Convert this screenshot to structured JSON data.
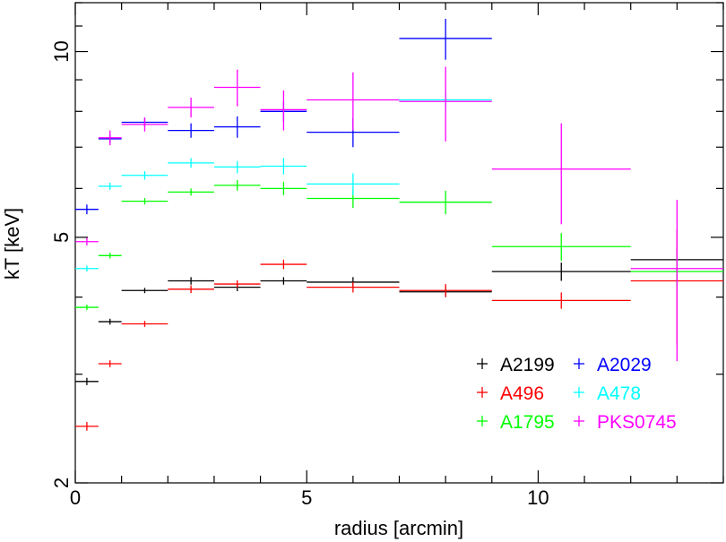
{
  "chart_data": {
    "type": "scatter",
    "xlabel": "radius [arcmin]",
    "ylabel": "kT [keV]",
    "xlim": [
      0,
      14
    ],
    "ylim": [
      2,
      12
    ],
    "y_scale": "log",
    "grid": false,
    "legend_position": "bottom-right",
    "x_ticks": [
      {
        "value": 0,
        "label": "0"
      },
      {
        "value": 5,
        "label": "5"
      },
      {
        "value": 10,
        "label": "10"
      }
    ],
    "y_ticks": [
      {
        "value": 2,
        "label": "2"
      },
      {
        "value": 5,
        "label": "5"
      },
      {
        "value": 10,
        "label": "10"
      }
    ],
    "series": [
      {
        "name": "A2199",
        "color": "#000000",
        "points": [
          {
            "x": 0.25,
            "xerr": 0.25,
            "y": 2.92,
            "yerr": 0.04
          },
          {
            "x": 0.75,
            "xerr": 0.25,
            "y": 3.65,
            "yerr": 0.04
          },
          {
            "x": 1.5,
            "xerr": 0.5,
            "y": 4.1,
            "yerr": 0.04
          },
          {
            "x": 2.5,
            "xerr": 0.5,
            "y": 4.25,
            "yerr": 0.06
          },
          {
            "x": 3.5,
            "xerr": 0.5,
            "y": 4.15,
            "yerr": 0.06
          },
          {
            "x": 4.5,
            "xerr": 0.5,
            "y": 4.25,
            "yerr": 0.06
          },
          {
            "x": 6.0,
            "xerr": 1.0,
            "y": 4.23,
            "yerr": 0.08
          },
          {
            "x": 8.0,
            "xerr": 1.0,
            "y": 4.08,
            "yerr": 0.08
          },
          {
            "x": 10.5,
            "xerr": 1.5,
            "y": 4.4,
            "yerr": 0.15
          },
          {
            "x": 13.0,
            "xerr": 1.0,
            "y": 4.6,
            "yerr": 0.2
          }
        ]
      },
      {
        "name": "A496",
        "color": "#ff0000",
        "points": [
          {
            "x": 0.25,
            "xerr": 0.25,
            "y": 2.47,
            "yerr": 0.04
          },
          {
            "x": 0.75,
            "xerr": 0.25,
            "y": 3.12,
            "yerr": 0.04
          },
          {
            "x": 1.5,
            "xerr": 0.5,
            "y": 3.62,
            "yerr": 0.04
          },
          {
            "x": 2.5,
            "xerr": 0.5,
            "y": 4.12,
            "yerr": 0.06
          },
          {
            "x": 3.5,
            "xerr": 0.5,
            "y": 4.2,
            "yerr": 0.06
          },
          {
            "x": 4.5,
            "xerr": 0.5,
            "y": 4.52,
            "yerr": 0.08
          },
          {
            "x": 6.0,
            "xerr": 1.0,
            "y": 4.15,
            "yerr": 0.08
          },
          {
            "x": 8.0,
            "xerr": 1.0,
            "y": 4.1,
            "yerr": 0.1
          },
          {
            "x": 10.5,
            "xerr": 1.5,
            "y": 3.95,
            "yerr": 0.12
          },
          {
            "x": 13.0,
            "xerr": 1.0,
            "y": 4.25,
            "yerr": 0.9
          }
        ]
      },
      {
        "name": "A1795",
        "color": "#00ff00",
        "points": [
          {
            "x": 0.25,
            "xerr": 0.25,
            "y": 3.85,
            "yerr": 0.04
          },
          {
            "x": 0.75,
            "xerr": 0.25,
            "y": 4.67,
            "yerr": 0.05
          },
          {
            "x": 1.5,
            "xerr": 0.5,
            "y": 5.72,
            "yerr": 0.07
          },
          {
            "x": 2.5,
            "xerr": 0.5,
            "y": 5.92,
            "yerr": 0.08
          },
          {
            "x": 3.5,
            "xerr": 0.5,
            "y": 6.07,
            "yerr": 0.12
          },
          {
            "x": 4.5,
            "xerr": 0.5,
            "y": 6.0,
            "yerr": 0.15
          },
          {
            "x": 6.0,
            "xerr": 1.0,
            "y": 5.78,
            "yerr": 0.2
          },
          {
            "x": 8.0,
            "xerr": 1.0,
            "y": 5.7,
            "yerr": 0.25
          },
          {
            "x": 10.5,
            "xerr": 1.5,
            "y": 4.83,
            "yerr": 0.25
          },
          {
            "x": 13.0,
            "xerr": 1.0,
            "y": 4.4,
            "yerr": 0.25
          }
        ]
      },
      {
        "name": "A2029",
        "color": "#0000ff",
        "points": [
          {
            "x": 0.25,
            "xerr": 0.25,
            "y": 5.55,
            "yerr": 0.1
          },
          {
            "x": 0.75,
            "xerr": 0.25,
            "y": 7.22,
            "yerr": 0.12
          },
          {
            "x": 1.5,
            "xerr": 0.5,
            "y": 7.68,
            "yerr": 0.12
          },
          {
            "x": 2.5,
            "xerr": 0.5,
            "y": 7.45,
            "yerr": 0.2
          },
          {
            "x": 3.5,
            "xerr": 0.5,
            "y": 7.55,
            "yerr": 0.3
          },
          {
            "x": 4.5,
            "xerr": 0.5,
            "y": 8.0,
            "yerr": 0.3
          },
          {
            "x": 6.0,
            "xerr": 1.0,
            "y": 7.4,
            "yerr": 0.4
          },
          {
            "x": 8.0,
            "xerr": 1.0,
            "y": 10.5,
            "yerr": 0.8
          }
        ]
      },
      {
        "name": "A478",
        "color": "#00ffff",
        "points": [
          {
            "x": 0.25,
            "xerr": 0.25,
            "y": 4.45,
            "yerr": 0.05
          },
          {
            "x": 0.75,
            "xerr": 0.25,
            "y": 6.05,
            "yerr": 0.08
          },
          {
            "x": 1.5,
            "xerr": 0.5,
            "y": 6.3,
            "yerr": 0.1
          },
          {
            "x": 2.5,
            "xerr": 0.5,
            "y": 6.6,
            "yerr": 0.12
          },
          {
            "x": 3.5,
            "xerr": 0.5,
            "y": 6.5,
            "yerr": 0.15
          },
          {
            "x": 4.5,
            "xerr": 0.5,
            "y": 6.52,
            "yerr": 0.2
          },
          {
            "x": 6.0,
            "xerr": 1.0,
            "y": 6.1,
            "yerr": 0.25
          },
          {
            "x": 8.0,
            "xerr": 1.0,
            "y": 8.35,
            "yerr": 0.3
          }
        ]
      },
      {
        "name": "PKS0745",
        "color": "#ff00ff",
        "points": [
          {
            "x": 0.25,
            "xerr": 0.25,
            "y": 4.92,
            "yerr": 0.07
          },
          {
            "x": 0.75,
            "xerr": 0.25,
            "y": 7.25,
            "yerr": 0.2
          },
          {
            "x": 1.5,
            "xerr": 0.5,
            "y": 7.62,
            "yerr": 0.2
          },
          {
            "x": 2.5,
            "xerr": 0.5,
            "y": 8.12,
            "yerr": 0.3
          },
          {
            "x": 3.5,
            "xerr": 0.5,
            "y": 8.75,
            "yerr": 0.6
          },
          {
            "x": 4.5,
            "xerr": 0.5,
            "y": 8.05,
            "yerr": 0.6
          },
          {
            "x": 6.0,
            "xerr": 1.0,
            "y": 8.35,
            "yerr": 0.9
          },
          {
            "x": 8.0,
            "xerr": 1.0,
            "y": 8.3,
            "yerr": 1.15
          },
          {
            "x": 10.5,
            "xerr": 1.5,
            "y": 6.45,
            "yerr": 1.2
          },
          {
            "x": 13.0,
            "xerr": 1.0,
            "y": 4.45,
            "yerr": 1.3
          }
        ]
      }
    ]
  }
}
